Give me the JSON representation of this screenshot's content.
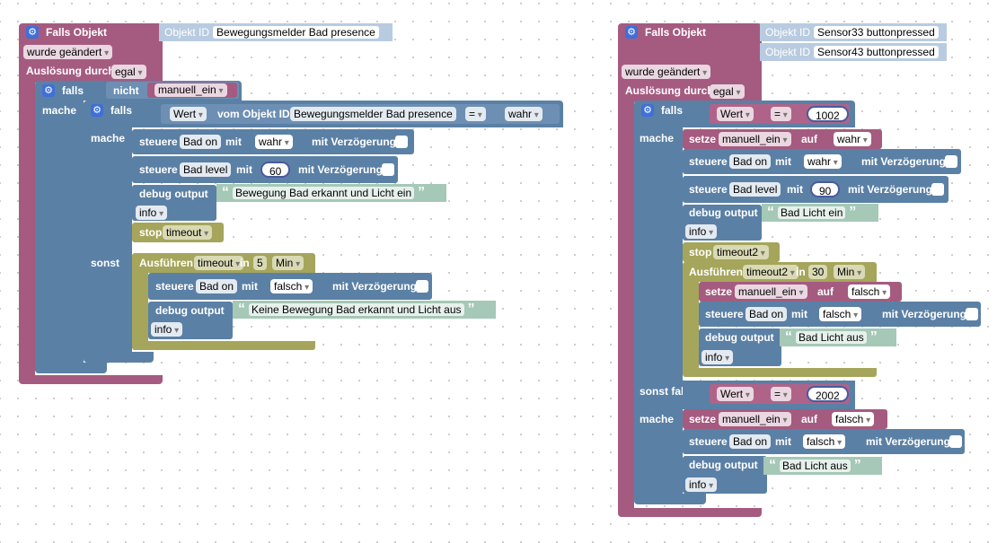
{
  "kw": {
    "falls_objekt": "Falls Objekt",
    "wurde_geaendert": "wurde geändert",
    "ausloesung_durch": "Auslösung durch",
    "egal": "egal",
    "objekt_id": "Objekt ID",
    "falls": "falls",
    "mache": "mache",
    "sonst": "sonst",
    "sonst_falls": "sonst falls",
    "nicht": "nicht",
    "wert": "Wert",
    "vom_objekt_id": "vom Objekt ID",
    "eq": "=",
    "steuere": "steuere",
    "mit": "mit",
    "mit_verz": "mit Verzögerung",
    "debug_output": "debug output",
    "info": "info",
    "stop": "stop",
    "ausfuehren": "Ausführen",
    "in": "in",
    "min": "Min",
    "setze": "setze",
    "auf": "auf",
    "wahr": "wahr",
    "falsch": "falsch",
    "quote_open": "“",
    "quote_close": "”"
  },
  "left": {
    "trigger_object": "Bewegungsmelder Bad presence",
    "cond_var": "manuell_ein",
    "inner_obj": "Bewegungsmelder Bad presence",
    "cond_val": "wahr",
    "s1_target": "Bad on",
    "s1_val": "wahr",
    "s2_target": "Bad level",
    "s2_val": "60",
    "debug1": "Bewegung Bad erkannt und Licht ein",
    "timeout": "timeout",
    "exec_min": "5",
    "s3_target": "Bad on",
    "s3_val": "falsch",
    "debug2": "Keine Bewegung Bad erkannt und Licht aus"
  },
  "right": {
    "trigger1": "Sensor33 buttonpressed",
    "trigger2": "Sensor43 buttonpressed",
    "val1": "1002",
    "var": "manuell_ein",
    "set1": "wahr",
    "s1_target": "Bad on",
    "s1_val": "wahr",
    "s2_target": "Bad level",
    "s2_val": "90",
    "debug1": "Bad Licht ein",
    "timeout2": "timeout2",
    "exec_min": "30",
    "set2": "falsch",
    "s3_target": "Bad on",
    "s3_val": "falsch",
    "debug2": "Bad Licht aus",
    "val2": "2002",
    "set3": "falsch",
    "s4_target": "Bad on",
    "s4_val": "falsch",
    "debug3": "Bad Licht aus"
  },
  "colors": {
    "trigger_block": "#a55b80",
    "logic_block": "#5b80a5",
    "timer_block": "#a5a55b",
    "text_block": "#a5c8b7"
  }
}
